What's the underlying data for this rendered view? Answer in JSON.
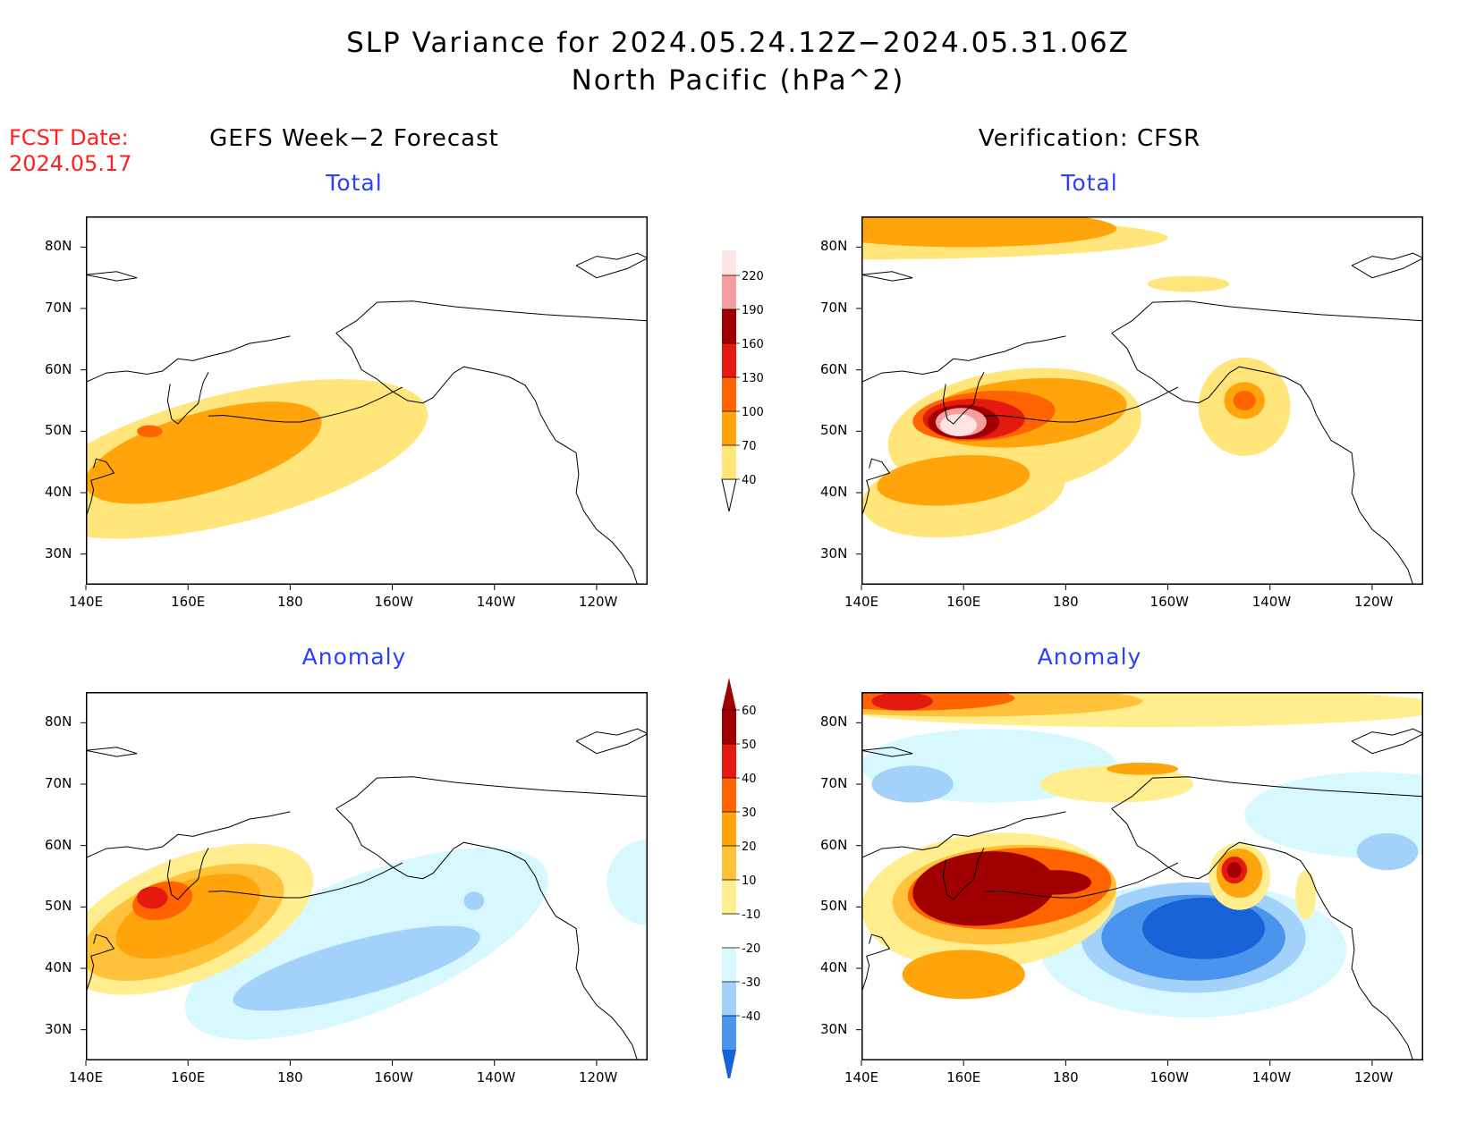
{
  "header": {
    "title_line1": "SLP Variance for 2024.05.24.12Z−2024.05.31.06Z",
    "title_line2": "North Pacific (hPa^2)",
    "fcst_label": "FCST Date:",
    "fcst_date": "2024.05.17"
  },
  "columns": {
    "left": "GEFS Week−2 Forecast",
    "right": "Verification: CFSR"
  },
  "rows": {
    "top": "Total",
    "bottom": "Anomaly"
  },
  "axes": {
    "lat_labels": [
      "80N",
      "70N",
      "60N",
      "50N",
      "40N",
      "30N"
    ],
    "lon_labels": [
      "140E",
      "160E",
      "180",
      "160W",
      "140W",
      "120W"
    ]
  },
  "colorbar_total": {
    "levels": [
      "40",
      "70",
      "100",
      "130",
      "160",
      "190",
      "220"
    ],
    "colors": [
      "#ffe57a",
      "#ffa40a",
      "#ff6400",
      "#e41a10",
      "#a00000",
      "#f59ea0",
      "#ffe4e4"
    ]
  },
  "colorbar_anomaly": {
    "levels": [
      "60",
      "50",
      "40",
      "30",
      "20",
      "10",
      "-10",
      "-20",
      "-30",
      "-40"
    ],
    "colors_top_to_bottom": [
      "#a00000",
      "#e41a10",
      "#ff6400",
      "#ffa40a",
      "#ffc23a",
      "#ffed8e",
      "#ffffff",
      "#d8f8ff",
      "#a2d2fa",
      "#4b94ee",
      "#1662d6"
    ]
  },
  "map_colors": {
    "t40": "#ffe57a",
    "t70": "#ffa40a",
    "t100": "#ff6400",
    "t130": "#e41a10",
    "t160": "#a00000",
    "t190": "#f59ea0",
    "t220": "#ffe4e4",
    "a10": "#ffed8e",
    "a20": "#ffc23a",
    "a30": "#ffa40a",
    "a40": "#ff6400",
    "a50": "#e41a10",
    "a60": "#a00000",
    "am10": "#d8f8ff",
    "am20": "#a2d2fa",
    "am30": "#4b94ee",
    "am40": "#1662d6"
  }
}
